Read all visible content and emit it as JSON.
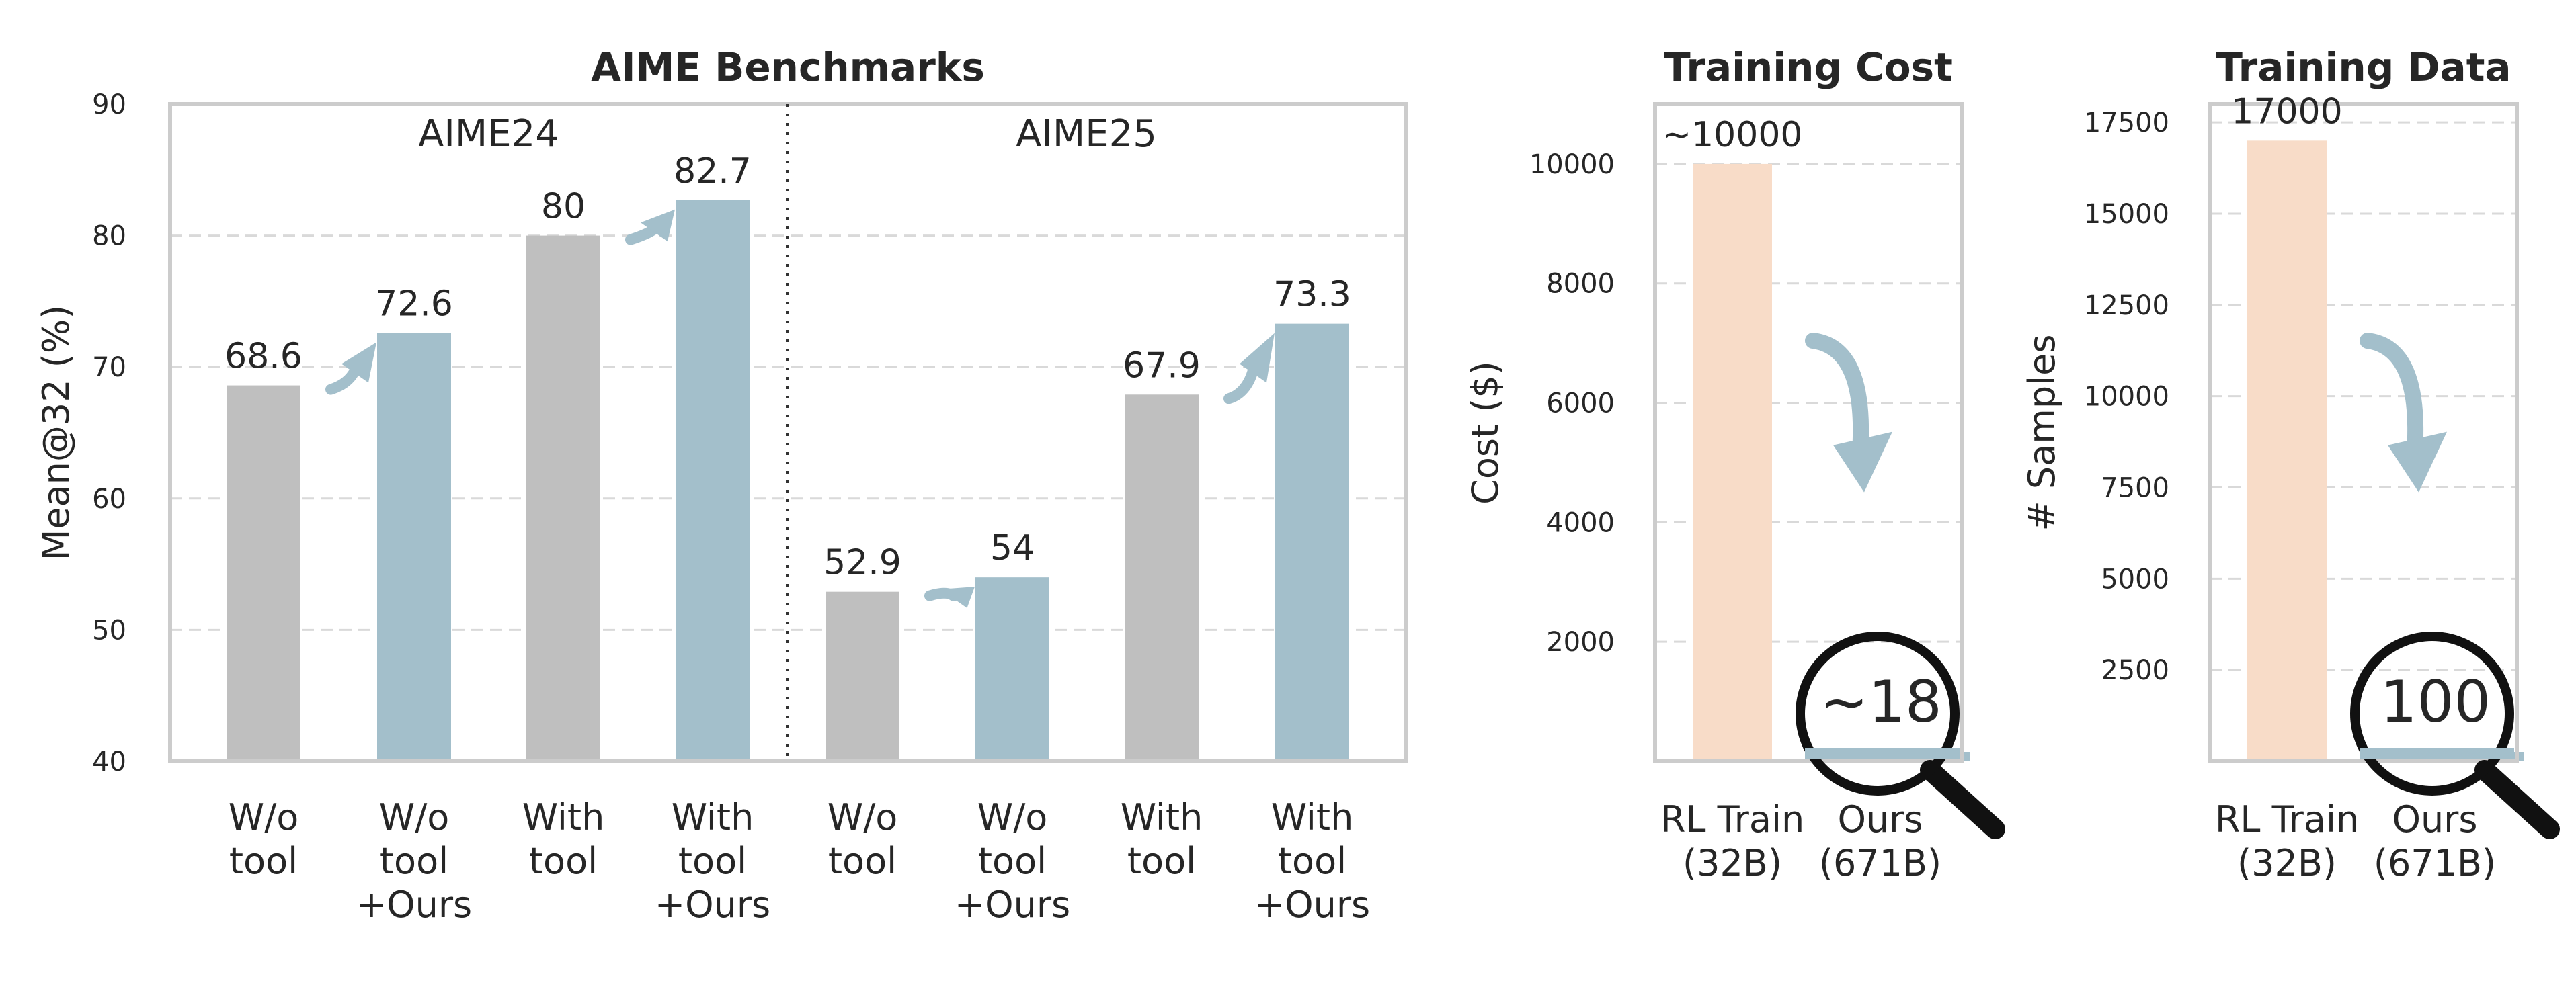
{
  "chart_data": [
    {
      "type": "bar",
      "title": "AIME Benchmarks",
      "ylabel": "Mean@32 (%)",
      "ylim": [
        40,
        90
      ],
      "yticks": [
        "40",
        "50",
        "60",
        "70",
        "80",
        "90"
      ],
      "grid": true,
      "groups": [
        "AIME24",
        "AIME25"
      ],
      "categories": [
        [
          "W/o",
          "tool"
        ],
        [
          "W/o",
          "tool",
          "+Ours"
        ],
        [
          "With",
          "tool"
        ],
        [
          "With",
          "tool",
          "+Ours"
        ],
        [
          "W/o",
          "tool"
        ],
        [
          "W/o",
          "tool",
          "+Ours"
        ],
        [
          "With",
          "tool"
        ],
        [
          "With",
          "tool",
          "+Ours"
        ]
      ],
      "values": [
        68.6,
        72.6,
        80,
        82.7,
        52.9,
        54,
        67.9,
        73.3
      ],
      "value_labels": [
        "68.6",
        "72.6",
        "80",
        "82.7",
        "52.9",
        "54",
        "67.9",
        "73.3"
      ],
      "colors": [
        "#bfbfbf",
        "#a3bfcb",
        "#bfbfbf",
        "#a3bfcb",
        "#bfbfbf",
        "#a3bfcb",
        "#bfbfbf",
        "#a3bfcb"
      ]
    },
    {
      "type": "bar",
      "title": "Training Cost",
      "ylabel": "Cost ($)",
      "ylim": [
        0,
        11000
      ],
      "yticks": [
        "2000",
        "4000",
        "6000",
        "8000",
        "10000"
      ],
      "ytick_values": [
        2000,
        4000,
        6000,
        8000,
        10000
      ],
      "grid": true,
      "categories": [
        [
          "RL Train",
          "(32B)"
        ],
        [
          "Ours",
          "(671B)"
        ]
      ],
      "values": [
        10000,
        18
      ],
      "value_labels": [
        "~10000",
        ""
      ],
      "magnifier_label": "~18",
      "colors": [
        "#f8dcc8",
        "#a3bfcb"
      ]
    },
    {
      "type": "bar",
      "title": "Training Data",
      "ylabel": "# Samples",
      "ylim": [
        0,
        18000
      ],
      "yticks": [
        "2500",
        "5000",
        "7500",
        "10000",
        "12500",
        "15000",
        "17500"
      ],
      "ytick_values": [
        2500,
        5000,
        7500,
        10000,
        12500,
        15000,
        17500
      ],
      "grid": true,
      "categories": [
        [
          "RL Train",
          "(32B)"
        ],
        [
          "Ours",
          "(671B)"
        ]
      ],
      "values": [
        17000,
        100
      ],
      "value_labels": [
        "17000",
        ""
      ],
      "magnifier_label": "100",
      "colors": [
        "#f8dcc8",
        "#a3bfcb"
      ]
    }
  ],
  "colors": {
    "baseline": "#bfbfbf",
    "ours": "#a3bfcb",
    "rl_train": "#f8dcc8",
    "arrow": "#a3bfcb"
  }
}
